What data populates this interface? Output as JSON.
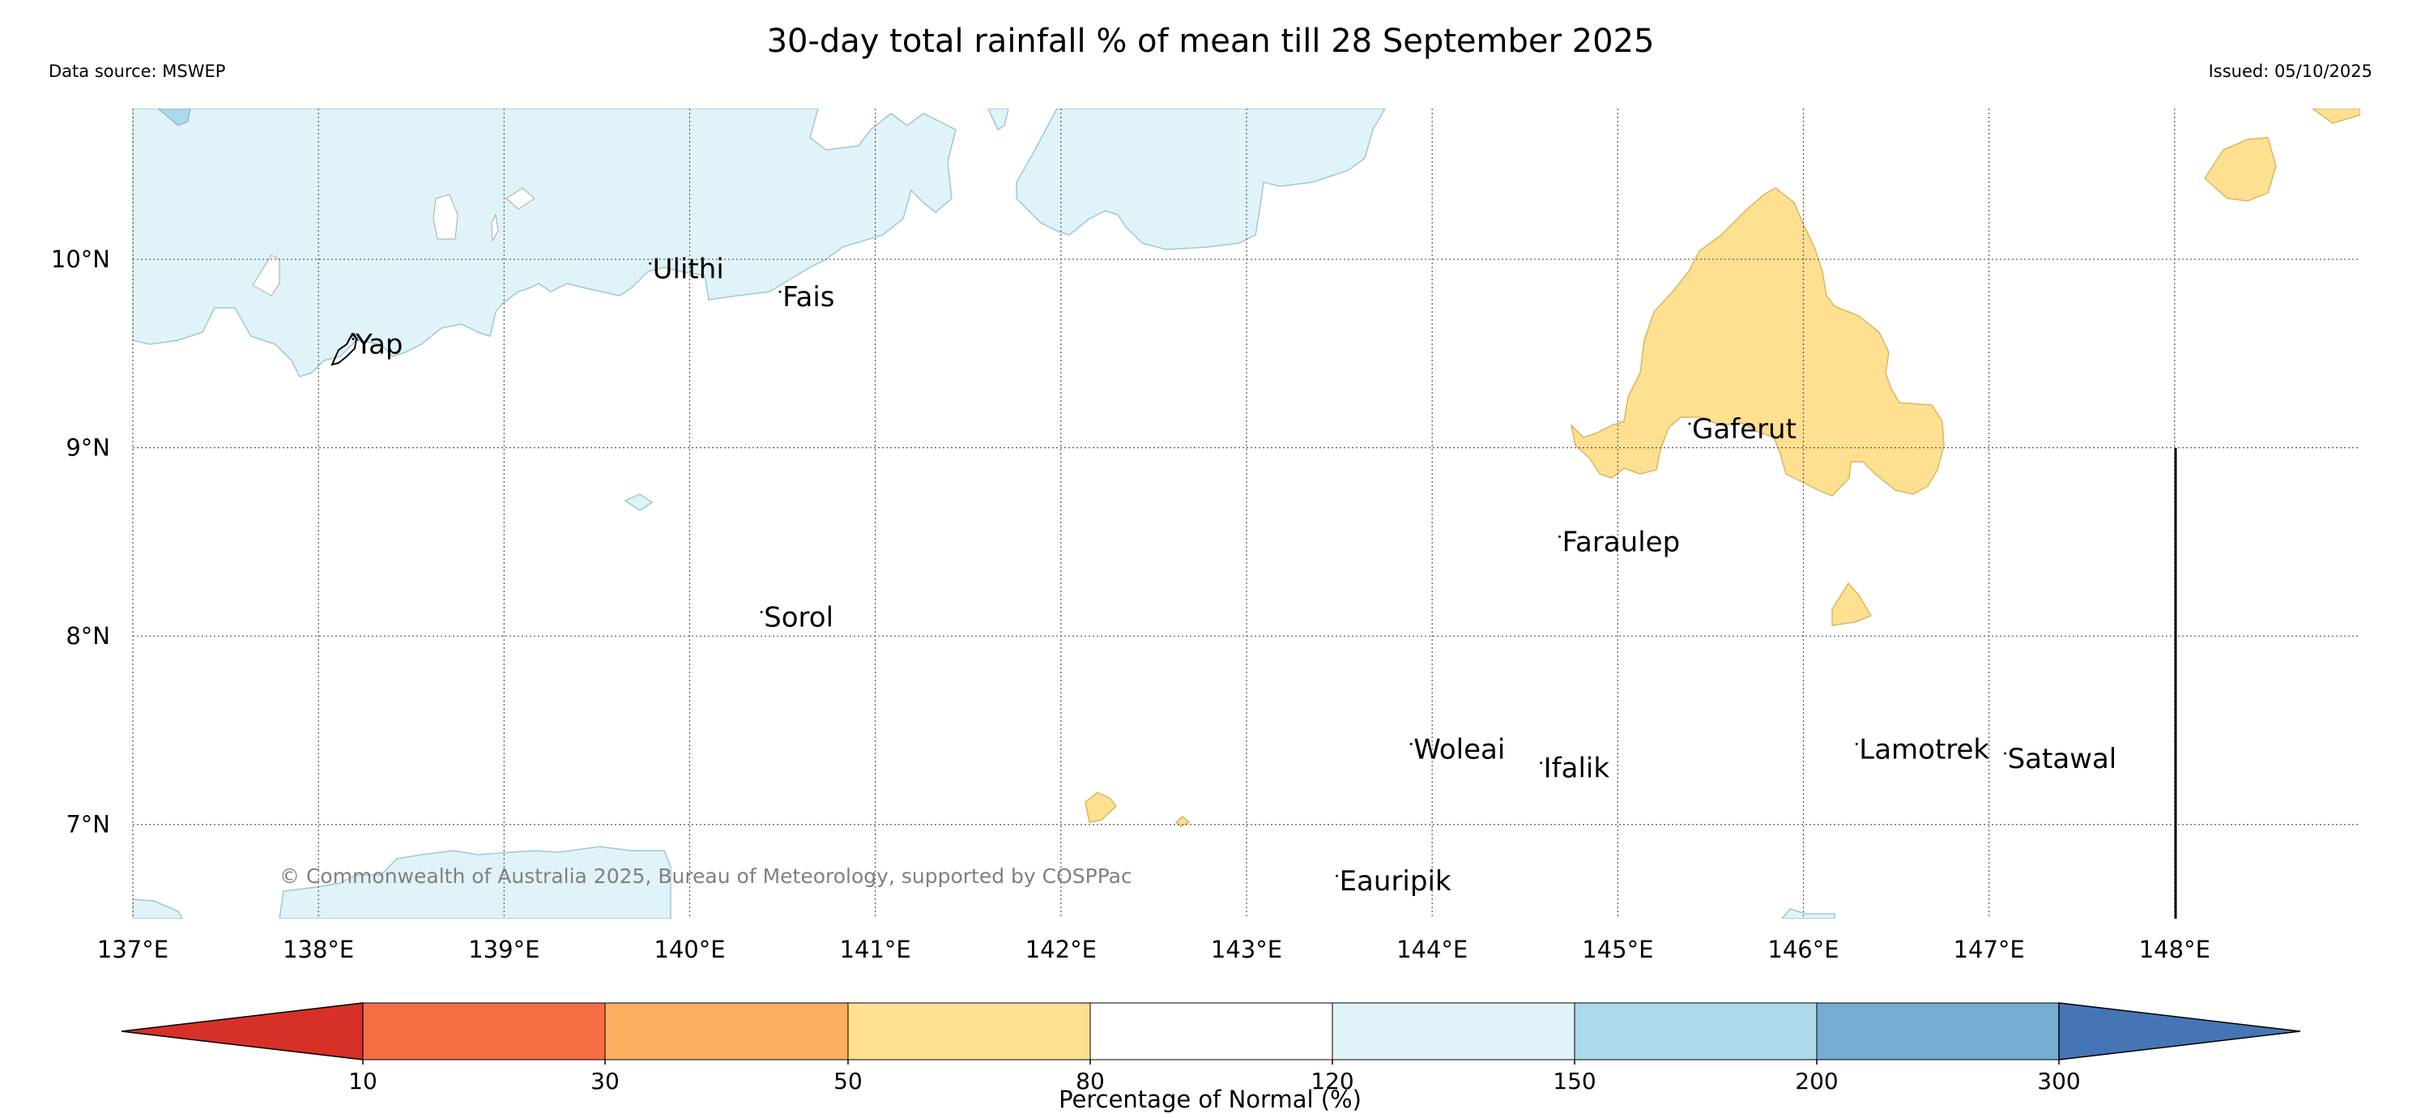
{
  "header": {
    "title": "30-day total rainfall % of mean till 28 September 2025",
    "data_source": "Data source: MSWEP",
    "issued": "Issued: 05/10/2025"
  },
  "map": {
    "lon_range": [
      137,
      149
    ],
    "lat_range": [
      6.5,
      10.8
    ],
    "lon_ticks": [
      {
        "value": 137,
        "label": "137°E"
      },
      {
        "value": 138,
        "label": "138°E"
      },
      {
        "value": 139,
        "label": "139°E"
      },
      {
        "value": 140,
        "label": "140°E"
      },
      {
        "value": 141,
        "label": "141°E"
      },
      {
        "value": 142,
        "label": "142°E"
      },
      {
        "value": 143,
        "label": "143°E"
      },
      {
        "value": 144,
        "label": "144°E"
      },
      {
        "value": 145,
        "label": "145°E"
      },
      {
        "value": 146,
        "label": "146°E"
      },
      {
        "value": 147,
        "label": "147°E"
      },
      {
        "value": 148,
        "label": "148°E"
      }
    ],
    "lat_ticks": [
      {
        "value": 10,
        "label": "10°N"
      },
      {
        "value": 9,
        "label": "9°N"
      },
      {
        "value": 8,
        "label": "8°N"
      },
      {
        "value": 7,
        "label": "7°N"
      }
    ],
    "places": [
      {
        "name": "Ulithi",
        "lon": 139.8,
        "lat": 9.9
      },
      {
        "name": "Fais",
        "lon": 140.5,
        "lat": 9.75
      },
      {
        "name": "Yap",
        "lon": 138.2,
        "lat": 9.5
      },
      {
        "name": "Gaferut",
        "lon": 145.4,
        "lat": 9.05
      },
      {
        "name": "Faraulep",
        "lon": 144.7,
        "lat": 8.45
      },
      {
        "name": "Sorol",
        "lon": 140.4,
        "lat": 8.05
      },
      {
        "name": "Woleai",
        "lon": 143.9,
        "lat": 7.35
      },
      {
        "name": "Ifalik",
        "lon": 144.6,
        "lat": 7.25
      },
      {
        "name": "Lamotrek",
        "lon": 146.3,
        "lat": 7.35
      },
      {
        "name": "Satawal",
        "lon": 147.1,
        "lat": 7.3
      },
      {
        "name": "Eauripik",
        "lon": 143.5,
        "lat": 6.65
      }
    ],
    "copyright": "© Commonwealth of Australia 2025, Bureau of Meteorology, supported by COSPPac",
    "colors": {
      "wet_120_150": "#e0f3f8",
      "wet_150_200": "#abd9e9",
      "dry_50_80": "#fee090",
      "grid": "#555555"
    }
  },
  "colorbar": {
    "title": "Percentage of Normal (%)",
    "ticks": [
      "10",
      "30",
      "50",
      "80",
      "120",
      "150",
      "200",
      "300"
    ],
    "colors": [
      "#d73027",
      "#f46d43",
      "#fdae61",
      "#fee090",
      "#ffffff",
      "#e0f3f8",
      "#abd9e9",
      "#74add1",
      "#4575b4"
    ]
  }
}
